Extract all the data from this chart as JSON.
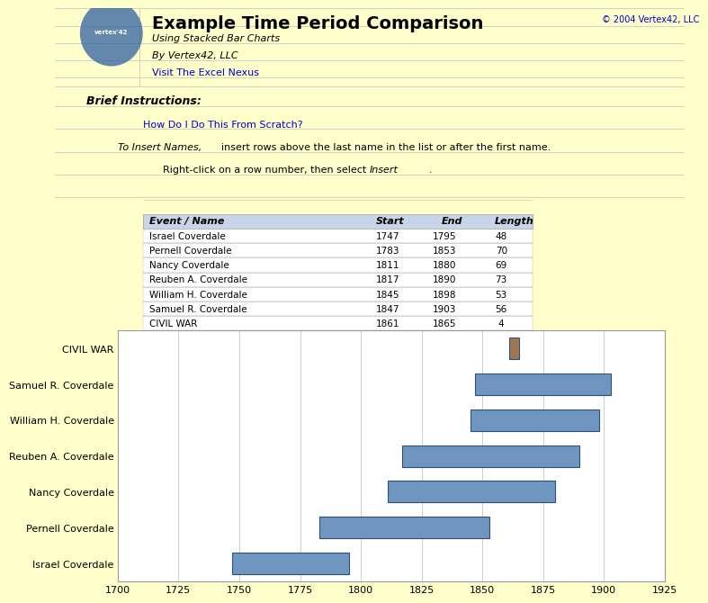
{
  "title": "Example Time Period Comparison",
  "subtitle": "Using Stacked Bar Charts",
  "by_line": "By Vertex42, LLC",
  "link_text": "Visit The Excel Nexus",
  "copyright": "© 2004 Vertex42, LLC",
  "table_headers": [
    "Event / Name",
    "Start",
    "End",
    "Length"
  ],
  "table_data": [
    [
      "Israel Coverdale",
      1747,
      1795,
      48
    ],
    [
      "Pernell Coverdale",
      1783,
      1853,
      70
    ],
    [
      "Nancy Coverdale",
      1811,
      1880,
      69
    ],
    [
      "Reuben A. Coverdale",
      1817,
      1890,
      73
    ],
    [
      "William H. Coverdale",
      1845,
      1898,
      53
    ],
    [
      "Samuel R. Coverdale",
      1847,
      1903,
      56
    ],
    [
      "CIVIL WAR",
      1861,
      1865,
      4
    ]
  ],
  "chart_names": [
    "Israel Coverdale",
    "Pernell Coverdale",
    "Nancy Coverdale",
    "Reuben A. Coverdale",
    "William H. Coverdale",
    "Samuel R. Coverdale",
    "CIVIL WAR"
  ],
  "starts": [
    1747,
    1783,
    1811,
    1817,
    1845,
    1847,
    1861
  ],
  "lengths": [
    48,
    70,
    69,
    73,
    53,
    56,
    4
  ],
  "bar_color_main": "#6F96C0",
  "bar_color_civil": "#A07850",
  "bar_edge_color": "#2F4F7F",
  "xmin": 1700,
  "xmax": 1925,
  "xticks": [
    1700,
    1725,
    1750,
    1775,
    1800,
    1825,
    1850,
    1875,
    1900,
    1925
  ],
  "chart_bg": "#FFFFFF",
  "header_bg": "#C8D4E8",
  "grid_color": "#CCCCCC",
  "excel_bg": "#FFFFCC",
  "border_color": "#999999",
  "col_line_color": "#C0C0C0",
  "logo_color": "#3060A0",
  "link_color": "#0000CC",
  "civil_war_label": "CIVIL WAR"
}
